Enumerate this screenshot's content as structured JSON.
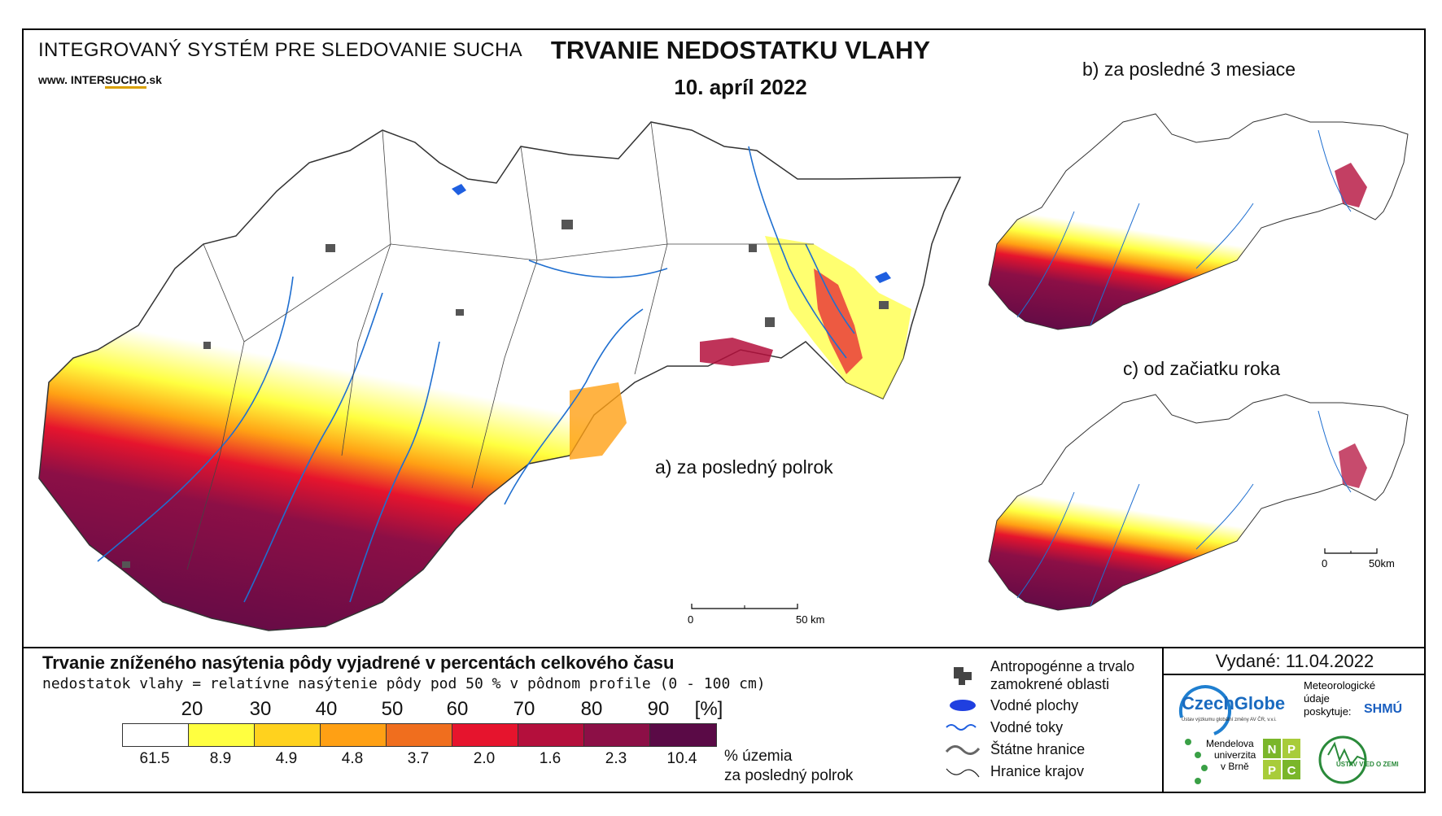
{
  "header": {
    "system_name": "INTEGROVANÝ SYSTÉM PRE SLEDOVANIE SUCHA",
    "url_prefix": "www. INTER",
    "url_highlight": "SUCHO",
    "url_suffix": ".sk",
    "title": "TRVANIE NEDOSTATKU VLAHY",
    "date": "10. apríl 2022"
  },
  "maps": {
    "main_label": "a) za posledný polrok",
    "b_label": "b) za posledné 3 mesiace",
    "c_label": "c) od začiatku roka",
    "main_scale": {
      "start": "0",
      "end": "50 km"
    },
    "c_scale": {
      "start": "0",
      "end": "50km"
    }
  },
  "legend": {
    "title": "Trvanie zníženého nasýtenia pôdy vyjadrené v percentách celkového času",
    "subtitle": "nedostatok vlahy = relatívne nasýtenie pôdy pod 50 % v pôdnom profile (0 - 100 cm)",
    "thresholds": [
      "20",
      "30",
      "40",
      "50",
      "60",
      "70",
      "80",
      "90",
      "[%]"
    ],
    "colors": [
      "#ffffff",
      "#ffff40",
      "#ffd21e",
      "#ffa014",
      "#f06e1e",
      "#e6142d",
      "#b40f3c",
      "#8c0f46",
      "#5a0a46"
    ],
    "percentages": [
      "61.5",
      "8.9",
      "4.9",
      "4.8",
      "3.7",
      "2.0",
      "1.6",
      "2.3",
      "10.4"
    ],
    "unit_line1": "% územia",
    "unit_line2": "za posledný polrok"
  },
  "symbols": {
    "anthropogenic": "Antropogénne a trvalo",
    "anthropogenic_2": "zamokrené oblasti",
    "water_bodies": "Vodné plochy",
    "water_streams": "Vodné toky",
    "state_border": "Štátne hranice",
    "region_border": "Hranice krajov"
  },
  "footer": {
    "issued": "Vydané: 11.04.2022",
    "czechglobe": "CzechGlobe",
    "czechglobe_sub": "Ústav výzkumu globální změny AV ČR, v.v.i.",
    "meteo_1": "Meteorologické",
    "meteo_2": "údaje",
    "meteo_3": "poskytuje:",
    "shmu": "SHMÚ",
    "mendel_1": "Mendelova",
    "mendel_2": "univerzita",
    "mendel_3": "v Brně",
    "nppc": [
      "N",
      "P",
      "P",
      "C"
    ],
    "uvz": "ÚSTAV VIED O ZEMI"
  }
}
